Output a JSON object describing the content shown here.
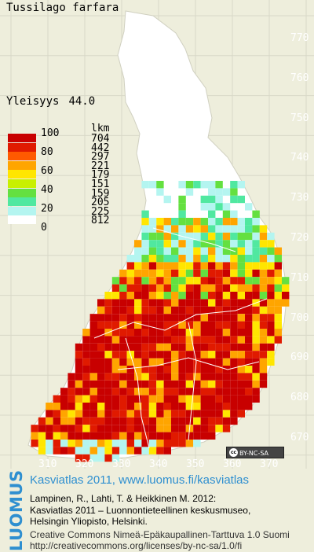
{
  "map": {
    "species": "Tussilago farfara",
    "frequency_label": "Yleisyys",
    "frequency_value": "44.0",
    "legend": {
      "percent_ticks": [
        "100",
        "80",
        "60",
        "40",
        "20",
        "0"
      ],
      "count_header": "lkm",
      "classes": [
        {
          "color": "#c80000",
          "count": "704"
        },
        {
          "color": "#e01a00",
          "count": "442"
        },
        {
          "color": "#ff5a00",
          "count": "297"
        },
        {
          "color": "#ffa500",
          "count": "221"
        },
        {
          "color": "#ffe600",
          "count": "179"
        },
        {
          "color": "#c8f000",
          "count": "151"
        },
        {
          "color": "#64e040",
          "count": "159"
        },
        {
          "color": "#50e8a0",
          "count": "205"
        },
        {
          "color": "#b4f5f0",
          "count": "225"
        },
        {
          "color": "#ffffff",
          "count": "812"
        }
      ]
    },
    "y_ticks": [
      "770",
      "760",
      "750",
      "740",
      "730",
      "720",
      "710",
      "700",
      "690",
      "680",
      "670"
    ],
    "x_ticks": [
      "310",
      "320",
      "330",
      "340",
      "350",
      "360",
      "370"
    ],
    "badge": {
      "cc": "cc",
      "text": "BY-NC-SA"
    },
    "colors": {
      "background": "#eeeedc",
      "grid": "#d8d8c8",
      "accent": "#2e8fd0"
    }
  },
  "footer": {
    "brand": "LUOMUS",
    "title": "Kasviatlas 2011, www.luomus.fi/kasviatlas",
    "citation": [
      "Lampinen, R., Lahti, T. & Heikkinen M. 2012:",
      "Kasviatlas 2011 – Luonnontieteellinen keskusmuseo,",
      "Helsingin Yliopisto, Helsinki."
    ],
    "license": [
      "Creative Commons Nimeä-Epäkaupallinen-Tarttuva 1.0 Suomi",
      "http://creativecommons.org/licenses/by-nc-sa/1.0/fi"
    ]
  }
}
